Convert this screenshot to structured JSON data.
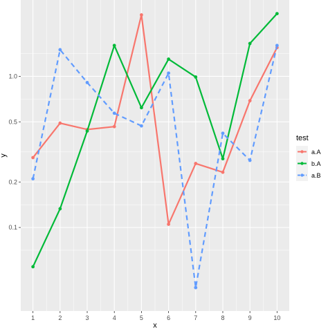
{
  "chart_data": {
    "type": "line",
    "xlabel": "x",
    "ylabel": "y",
    "y_scale": "log10",
    "x": [
      1,
      2,
      3,
      4,
      5,
      6,
      7,
      8,
      9,
      10
    ],
    "x_ticks": [
      "1",
      "2",
      "3",
      "4",
      "5",
      "6",
      "7",
      "8",
      "9",
      "10"
    ],
    "y_ticks": [
      {
        "value": 0.1,
        "label": "0.1"
      },
      {
        "value": 0.2,
        "label": "0.2"
      },
      {
        "value": 0.5,
        "label": "0.5"
      },
      {
        "value": 1.0,
        "label": "1.0"
      }
    ],
    "ylim": [
      0.028,
      3.2
    ],
    "xlim": [
      0.55,
      10.45
    ],
    "grid": true,
    "legend": {
      "title": "test",
      "position": "right"
    },
    "series": [
      {
        "name": "a.A",
        "color": "#F8766D",
        "linetype": "solid",
        "values": [
          0.29,
          0.49,
          0.445,
          0.465,
          2.55,
          0.105,
          0.265,
          0.232,
          0.69,
          1.55
        ]
      },
      {
        "name": "b.A",
        "color": "#00BA38",
        "linetype": "solid",
        "values": [
          0.055,
          0.133,
          0.435,
          1.6,
          0.62,
          1.3,
          0.99,
          0.285,
          1.65,
          2.6
        ]
      },
      {
        "name": "a.B",
        "color": "#619CFF",
        "linetype": "dashed",
        "values": [
          0.21,
          1.5,
          0.91,
          0.57,
          0.47,
          1.05,
          0.04,
          0.42,
          0.278,
          1.6
        ]
      }
    ]
  }
}
